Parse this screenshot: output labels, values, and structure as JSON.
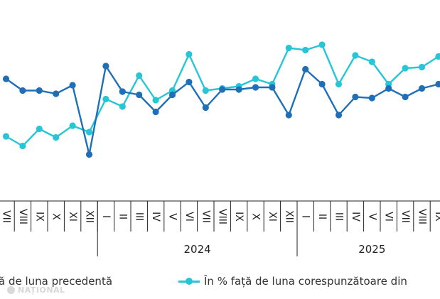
{
  "chart_data": {
    "type": "line",
    "x": [
      "VII",
      "VIII",
      "IX",
      "X",
      "XI",
      "XII",
      "I",
      "II",
      "III",
      "IV",
      "V",
      "VI",
      "VII",
      "VIII",
      "IX",
      "X",
      "XI",
      "XII",
      "I",
      "II",
      "III",
      "IV",
      "V",
      "VI",
      "VII",
      "VIII",
      "IX"
    ],
    "year_labels": [
      {
        "label": "2024",
        "start_index": 6,
        "end_index": 17
      },
      {
        "label": "2025",
        "start_index": 18,
        "end_index": 26
      }
    ],
    "series": [
      {
        "name": "...ă de luna precedentă",
        "color": "#1f6fb8",
        "values": [
          105.6,
          104.5,
          104.5,
          104.2,
          105.0,
          98.5,
          106.8,
          104.4,
          104.1,
          102.5,
          104.1,
          105.3,
          102.9,
          104.6,
          104.6,
          104.8,
          104.8,
          102.2,
          106.5,
          105.1,
          102.2,
          103.9,
          103.8,
          104.7,
          103.9,
          104.7,
          105.1
        ]
      },
      {
        "name": "În % față de luna corespunzătoare din...",
        "color": "#27c6d6",
        "values": [
          100.2,
          99.3,
          100.9,
          100.1,
          101.2,
          100.6,
          103.7,
          103.0,
          105.9,
          103.6,
          104.5,
          107.9,
          104.5,
          104.7,
          104.9,
          105.6,
          105.1,
          108.5,
          108.3,
          108.8,
          105.1,
          107.8,
          107.2,
          105.1,
          106.6,
          106.7,
          107.7
        ]
      }
    ]
  },
  "legend": {
    "series1_label": "ă de luna precedentă",
    "series2_label": "În % față de luna corespunzătoare din"
  },
  "watermark": "NAȚIONAL"
}
